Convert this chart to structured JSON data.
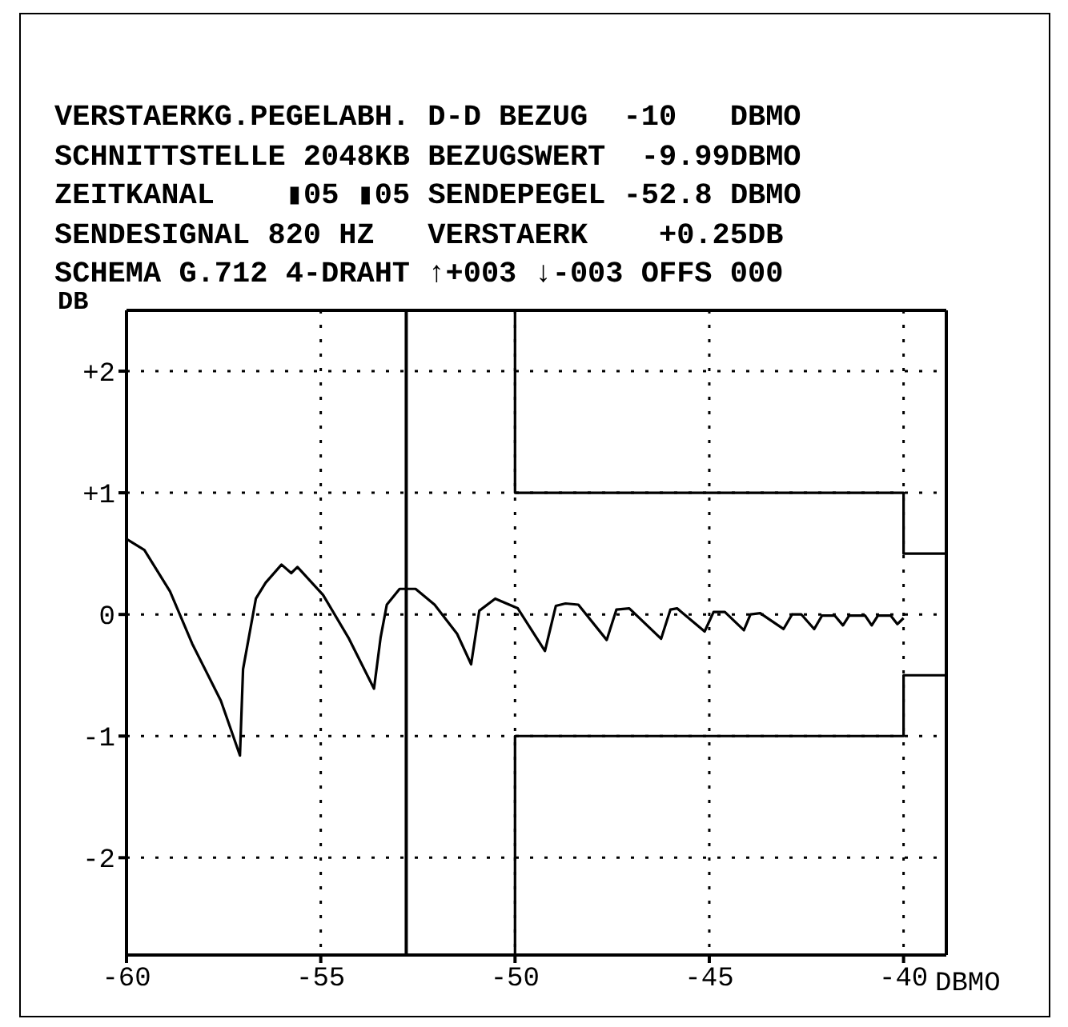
{
  "chart_data": {
    "type": "line",
    "annotations": [
      "VERSTAERKG.PEGELABH. D-D BEZUG  -10   DBMO",
      "SCHNITTSTELLE 2048KB BEZUGSWERT  -9.99DBMO",
      "ZEITKANAL    ▮05 ▮05 SENDEPEGEL -52.8 DBMO",
      "SENDESIGNAL 820 HZ   VERSTAERK    +0.25DB",
      "SCHEMA G.712 4-DRAHT ↑+003 ↓-003 OFFS 000"
    ],
    "xlabel": "DBMO",
    "ylabel": "DB",
    "xlim": [
      -60,
      -38.9
    ],
    "xticks": [
      -60,
      -55,
      -50,
      -45,
      -40
    ],
    "ylim": [
      -2.8,
      2.5
    ],
    "yticks": [
      {
        "value": 2,
        "label": "+2"
      },
      {
        "value": 1,
        "label": "+1"
      },
      0,
      -1,
      -2
    ],
    "grid": true,
    "marker": "none",
    "line_style": "solid",
    "ref_lines": [
      {
        "axis": "x",
        "value": -52.8,
        "color": "#000000"
      }
    ],
    "series": [
      {
        "color": "#000000",
        "x": [
          -60,
          -59.54,
          -58.88,
          -58.31,
          -57.57,
          -57.08,
          -57.0,
          -56.67,
          -56.42,
          -56.01,
          -55.76,
          -55.6,
          -54.94,
          -54.29,
          -53.63,
          -53.46,
          -53.3,
          -52.97,
          -52.56,
          -52.07,
          -51.49,
          -51.13,
          -50.92,
          -50.51,
          -49.93,
          -49.23,
          -48.95,
          -48.7,
          -48.37,
          -47.64,
          -47.39,
          -47.06,
          -46.24,
          -46.0,
          -45.83,
          -45.12,
          -44.89,
          -44.6,
          -44.11,
          -43.94,
          -43.69,
          -43.09,
          -42.87,
          -42.63,
          -42.3,
          -42.1,
          -41.77,
          -41.56,
          -41.4,
          -40.99,
          -40.82,
          -40.66,
          -40.33,
          -40.16,
          -40.0
        ],
        "values": [
          0.62,
          0.53,
          0.19,
          -0.24,
          -0.71,
          -1.16,
          -0.45,
          0.13,
          0.26,
          0.41,
          0.34,
          0.39,
          0.16,
          -0.19,
          -0.61,
          -0.19,
          0.08,
          0.21,
          0.21,
          0.08,
          -0.16,
          -0.41,
          0.03,
          0.13,
          0.05,
          -0.3,
          0.07,
          0.09,
          0.08,
          -0.21,
          0.04,
          0.05,
          -0.2,
          0.04,
          0.05,
          -0.14,
          0.02,
          0.02,
          -0.13,
          0,
          0.01,
          -0.12,
          0,
          0,
          -0.12,
          -0.01,
          -0.01,
          -0.09,
          -0.01,
          -0.01,
          -0.09,
          -0.01,
          -0.01,
          -0.08,
          -0.03
        ]
      },
      {
        "color": "#000000",
        "x": [
          -50,
          -50,
          -40,
          -40,
          -38.9
        ],
        "values": [
          2.5,
          1,
          1,
          0.5,
          0.5
        ]
      },
      {
        "color": "#000000",
        "x": [
          -50,
          -50,
          -40,
          -40,
          -38.9
        ],
        "values": [
          -2.8,
          -1,
          -1,
          -0.5,
          -0.5
        ]
      }
    ]
  }
}
